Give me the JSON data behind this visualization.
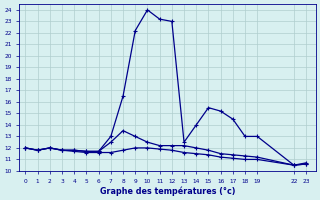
{
  "title": "Graphe des températures (°c)",
  "bg_color": "#d8f0f0",
  "line_color": "#00008b",
  "grid_color": "#b0cece",
  "ylim": [
    10,
    24.5
  ],
  "yticks": [
    10,
    11,
    12,
    13,
    14,
    15,
    16,
    17,
    18,
    19,
    20,
    21,
    22,
    23,
    24
  ],
  "xtick_positions": [
    0,
    1,
    2,
    3,
    4,
    5,
    6,
    7,
    8,
    9,
    10,
    11,
    12,
    13,
    14,
    15,
    16,
    17,
    18,
    19,
    22,
    23
  ],
  "xtick_labels": [
    "0",
    "1",
    "2",
    "3",
    "4",
    "5",
    "6",
    "7",
    "8",
    "9",
    "10",
    "11",
    "12",
    "13",
    "14",
    "15",
    "16",
    "17",
    "18",
    "19",
    "22",
    "23"
  ],
  "series1_x": [
    0,
    1,
    2,
    3,
    4,
    5,
    6,
    7,
    8,
    9,
    10,
    11,
    12,
    13,
    14,
    15,
    16,
    17,
    18,
    19,
    22,
    23
  ],
  "series1_y": [
    12.0,
    11.8,
    12.0,
    11.8,
    11.8,
    11.7,
    11.7,
    13.0,
    16.5,
    22.2,
    24.0,
    23.2,
    23.0,
    12.5,
    14.0,
    15.5,
    15.2,
    14.5,
    13.0,
    13.0,
    10.5,
    10.7
  ],
  "series2_x": [
    0,
    1,
    2,
    3,
    4,
    5,
    6,
    7,
    8,
    9,
    10,
    11,
    12,
    13,
    14,
    15,
    16,
    17,
    18,
    19,
    22,
    23
  ],
  "series2_y": [
    12.0,
    11.8,
    12.0,
    11.8,
    11.8,
    11.7,
    11.7,
    12.5,
    13.5,
    13.0,
    12.5,
    12.2,
    12.2,
    12.2,
    12.0,
    11.8,
    11.5,
    11.4,
    11.3,
    11.2,
    10.5,
    10.6
  ],
  "series3_x": [
    0,
    1,
    2,
    3,
    4,
    5,
    6,
    7,
    8,
    9,
    10,
    11,
    12,
    13,
    14,
    15,
    16,
    17,
    18,
    19,
    22,
    23
  ],
  "series3_y": [
    12.0,
    11.8,
    12.0,
    11.8,
    11.7,
    11.6,
    11.6,
    11.6,
    11.8,
    12.0,
    12.0,
    11.9,
    11.8,
    11.6,
    11.5,
    11.4,
    11.2,
    11.1,
    11.0,
    11.0,
    10.5,
    10.6
  ]
}
